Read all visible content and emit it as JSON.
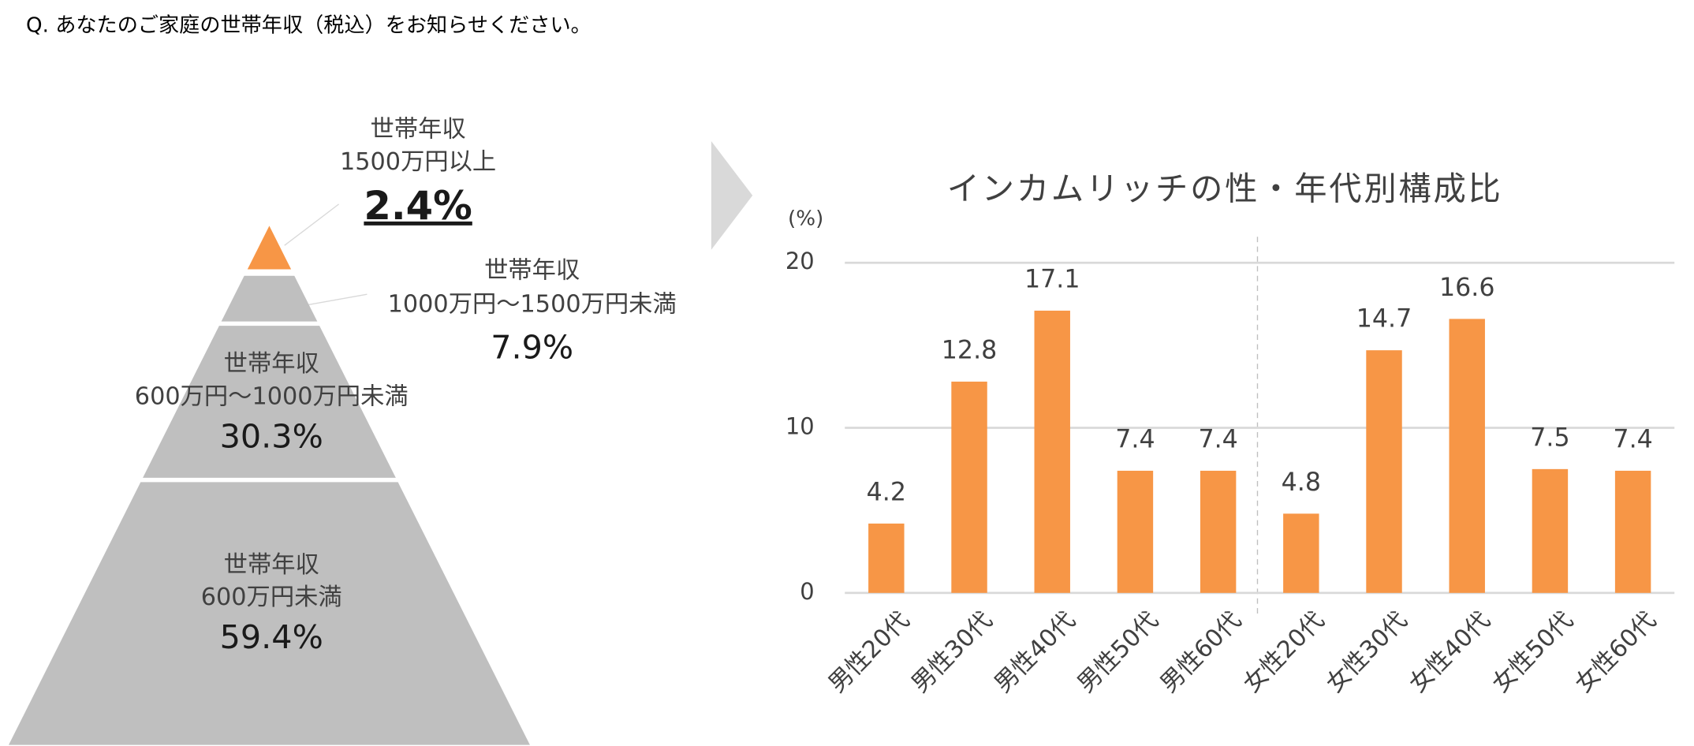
{
  "header": {
    "question": "Q. あなたのご家庭の世帯年収（税込）をお知らせください。"
  },
  "chart_data": [
    {
      "type": "pyramid",
      "categories": [
        [
          "世帯年収",
          "1500万円以上"
        ],
        [
          "世帯年収",
          "1000万円～1500万円未満"
        ],
        [
          "世帯年収",
          "600万円～1000万円未満"
        ],
        [
          "世帯年収",
          "600万円未満"
        ]
      ],
      "values": [
        2.4,
        7.9,
        30.3,
        59.4
      ],
      "value_labels": [
        "2.4%",
        "7.9%",
        "30.3%",
        "59.4%"
      ],
      "colors": [
        "#f79646",
        "#bfbfbf",
        "#bfbfbf",
        "#bfbfbf"
      ]
    },
    {
      "type": "bar",
      "title": "インカムリッチの性・年代別構成比",
      "y_label": "(%)",
      "categories": [
        "男性20代",
        "男性30代",
        "男性40代",
        "男性50代",
        "男性60代",
        "女性20代",
        "女性30代",
        "女性40代",
        "女性50代",
        "女性60代"
      ],
      "values": [
        4.2,
        12.8,
        17.1,
        7.4,
        7.4,
        4.8,
        14.7,
        16.6,
        7.5,
        7.4
      ],
      "color": "#f79646",
      "ylim": [
        0,
        20
      ],
      "yticks": [
        0,
        10,
        20
      ],
      "grid": true
    }
  ]
}
